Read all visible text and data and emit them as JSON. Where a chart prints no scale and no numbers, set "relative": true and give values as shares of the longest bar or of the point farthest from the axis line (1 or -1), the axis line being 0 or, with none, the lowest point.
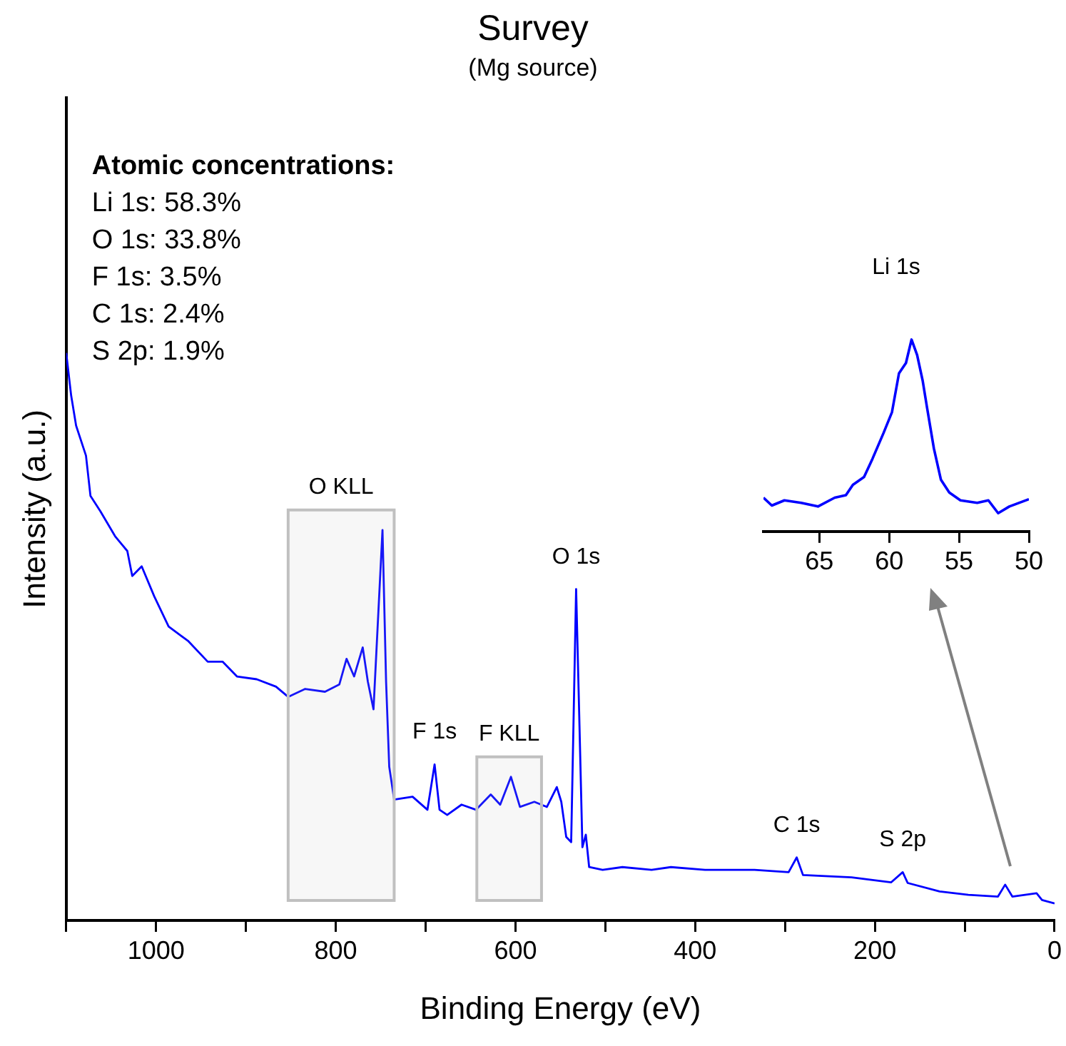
{
  "chart_data": [
    {
      "type": "line",
      "title": "Survey",
      "subtitle": "(Mg source)",
      "xlabel": "Binding Energy (eV)",
      "ylabel": "Intensity (a.u.)",
      "relative": true,
      "xlim": [
        1100,
        0
      ],
      "xticks": [
        {
          "value": 1100,
          "label": null
        },
        1000,
        {
          "value": 900,
          "label": null
        },
        800,
        {
          "value": 700,
          "label": null
        },
        600,
        {
          "value": 500,
          "label": null
        },
        400,
        {
          "value": 300,
          "label": null
        },
        200,
        {
          "value": 100,
          "label": null
        },
        0
      ],
      "grid": false,
      "legend": false,
      "marker": "none",
      "line_style": "solid",
      "series": [
        {
          "color": "#0000ff",
          "x": [
            1100,
            1094.5,
            1089,
            1078,
            1073,
            1062,
            1045.6,
            1032,
            1026.5,
            1016,
            1002,
            986,
            964,
            942.5,
            926,
            910,
            888,
            866.5,
            853,
            834,
            812,
            796,
            788,
            779.6,
            770,
            764.3,
            758,
            748,
            744,
            740.5,
            735,
            714.5,
            698,
            690,
            684.5,
            676,
            660,
            644,
            627.5,
            617,
            605,
            595,
            579,
            565,
            554,
            549,
            543.5,
            538,
            532.5,
            529,
            525.5,
            521.7,
            518,
            503,
            481,
            448.5,
            427,
            389,
            334,
            296,
            287,
            280,
            226,
            182,
            169,
            163.5,
            128,
            96,
            63,
            55,
            47,
            20,
            14,
            0
          ],
          "values": [
            1.0,
            0.925,
            0.872,
            0.819,
            0.748,
            0.721,
            0.677,
            0.651,
            0.607,
            0.624,
            0.571,
            0.518,
            0.492,
            0.456,
            0.456,
            0.43,
            0.425,
            0.412,
            0.394,
            0.408,
            0.403,
            0.416,
            0.461,
            0.43,
            0.481,
            0.421,
            0.372,
            0.688,
            0.421,
            0.271,
            0.213,
            0.218,
            0.195,
            0.275,
            0.195,
            0.186,
            0.204,
            0.195,
            0.222,
            0.204,
            0.253,
            0.2,
            0.209,
            0.2,
            0.235,
            0.209,
            0.147,
            0.138,
            0.584,
            0.359,
            0.129,
            0.151,
            0.094,
            0.089,
            0.094,
            0.089,
            0.094,
            0.089,
            0.089,
            0.085,
            0.111,
            0.08,
            0.076,
            0.067,
            0.085,
            0.066,
            0.051,
            0.045,
            0.042,
            0.063,
            0.042,
            0.048,
            0.036,
            0.03
          ]
        }
      ],
      "bands": [
        {
          "axis": "x",
          "from": 853,
          "to": 735,
          "label": "O KLL",
          "color": "#c0c0c0"
        },
        {
          "axis": "x",
          "from": 643,
          "to": 571,
          "label": "F KLL",
          "color": "#c0c0c0"
        }
      ],
      "annotations": [
        "Atomic concentrations:",
        "Li 1s: 58.3%",
        "O 1s: 33.8%",
        "F 1s: 3.5%",
        "C 1s: 2.4%",
        "S 2p: 1.9%",
        {
          "text": "F 1s",
          "x": 690,
          "y": 0.275
        },
        {
          "text": "O 1s",
          "x": 532.5,
          "y": 0.584
        },
        {
          "text": "C 1s",
          "x": 287,
          "y": 0.111
        },
        {
          "text": "S 2p",
          "x": 169,
          "y": 0.085
        }
      ]
    },
    {
      "type": "line",
      "title": "Li 1s",
      "relative": true,
      "xlim": [
        69,
        50
      ],
      "xticks": [
        65,
        60,
        55,
        50
      ],
      "grid": false,
      "legend": false,
      "marker": "none",
      "line_style": "solid",
      "tick_labels": "x",
      "series": [
        {
          "color": "#0000ff",
          "x": [
            69.0,
            68.4,
            67.5,
            66.3,
            65.1,
            63.9,
            63.1,
            62.6,
            61.8,
            61.2,
            60.4,
            59.8,
            59.3,
            58.8,
            58.4,
            58.0,
            57.6,
            57.3,
            56.8,
            56.3,
            55.7,
            54.9,
            53.7,
            52.9,
            52.2,
            51.4,
            50.0
          ],
          "values": [
            0.176,
            0.135,
            0.162,
            0.149,
            0.13,
            0.176,
            0.189,
            0.243,
            0.284,
            0.378,
            0.514,
            0.622,
            0.824,
            0.878,
            1.0,
            0.919,
            0.784,
            0.649,
            0.432,
            0.27,
            0.203,
            0.162,
            0.149,
            0.162,
            0.095,
            0.13,
            0.168
          ]
        }
      ]
    }
  ]
}
